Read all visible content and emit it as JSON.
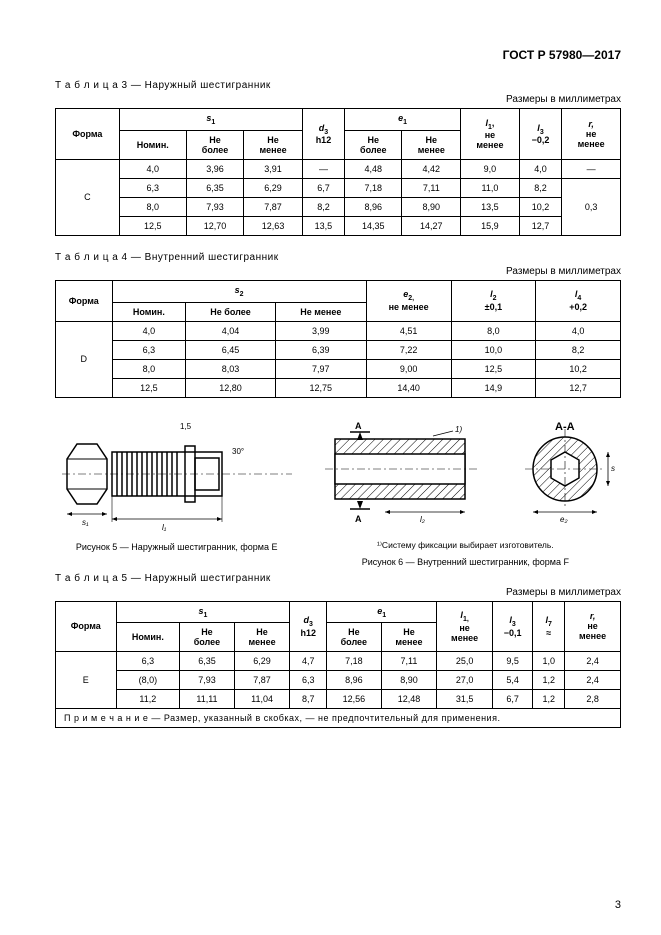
{
  "doc_number": "ГОСТ Р 57980—2017",
  "table3": {
    "title": "Т а б л и ц а  3 — Наружный шестигранник",
    "units": "Размеры в миллиметрах",
    "headers": {
      "form": "Форма",
      "s1": "s",
      "s1_sub": "1",
      "nom": "Номин.",
      "nobolee": "Не\nболее",
      "nomenee": "Не\nменее",
      "d3": "d",
      "d3_sub": "3",
      "d3_tol": "h12",
      "e1": "e",
      "e1_sub": "1",
      "l1": "l",
      "l1_sub": "1",
      "l1_tol": "не\nменее",
      "l3": "l",
      "l3_sub": "3",
      "l3_tol": "−0,2",
      "r": "r,",
      "r_tol": "не\nменее"
    },
    "form_label": "C",
    "rows": [
      [
        "4,0",
        "3,96",
        "3,91",
        "—",
        "4,48",
        "4,42",
        "9,0",
        "4,0",
        "—"
      ],
      [
        "6,3",
        "6,35",
        "6,29",
        "6,7",
        "7,18",
        "7,11",
        "11,0",
        "8,2",
        ""
      ],
      [
        "8,0",
        "7,93",
        "7,87",
        "8,2",
        "8,96",
        "8,90",
        "13,5",
        "10,2",
        "0,3"
      ],
      [
        "12,5",
        "12,70",
        "12,63",
        "13,5",
        "14,35",
        "14,27",
        "15,9",
        "12,7",
        ""
      ]
    ]
  },
  "table4": {
    "title": "Т а б л и ц а  4 — Внутренний шестигранник",
    "units": "Размеры в миллиметрах",
    "headers": {
      "form": "Форма",
      "s2": "s",
      "s2_sub": "2",
      "nom": "Номин.",
      "nobolee": "Не более",
      "nomenee": "Не менее",
      "e2": "e",
      "e2_sub": "2,",
      "e2_tol": "не менее",
      "l2": "l",
      "l2_sub": "2",
      "l2_tol": "±0,1",
      "l4": "l",
      "l4_sub": "4",
      "l4_tol": "+0,2"
    },
    "form_label": "D",
    "rows": [
      [
        "4,0",
        "4,04",
        "3,99",
        "4,51",
        "8,0",
        "4,0"
      ],
      [
        "6,3",
        "6,45",
        "6,39",
        "7,22",
        "10,0",
        "8,2"
      ],
      [
        "8,0",
        "8,03",
        "7,97",
        "9,00",
        "12,5",
        "10,2"
      ],
      [
        "12,5",
        "12,80",
        "12,75",
        "14,40",
        "14,9",
        "12,7"
      ]
    ]
  },
  "fig5_caption": "Рисунок 5 — Наружный шестигранник, форма E",
  "fig6_caption": "Рисунок 6 — Внутренний шестигранник, форма F",
  "fig_footnote": "¹⁾Систему фиксации выбирает изготовитель.",
  "fig_ann": {
    "a_a": "A-A",
    "ref_1": "1)",
    "dim_1_5": "1,5",
    "thirty_deg": "30°",
    "A": "A"
  },
  "table5": {
    "title": "Т а б л и ц а  5 — Наружный шестигранник",
    "units": "Размеры в миллиметрах",
    "headers": {
      "form": "Форма",
      "s1": "s",
      "s1_sub": "1",
      "nom": "Номин.",
      "nobolee": "Не\nболее",
      "nomenee": "Не\nменее",
      "d3": "d",
      "d3_sub": "3",
      "d3_tol": "h12",
      "e1": "e",
      "e1_sub": "1",
      "l1": "l",
      "l1_sub": "1,",
      "l1_tol": "не\nменее",
      "l3": "l",
      "l3_sub": "3",
      "l3_tol": "−0,1",
      "l7": "l",
      "l7_sub": "7",
      "l7_tol": "≈",
      "r": "r,",
      "r_tol": "не\nменее"
    },
    "form_label": "E",
    "rows": [
      [
        "6,3",
        "6,35",
        "6,29",
        "4,7",
        "7,18",
        "7,11",
        "25,0",
        "9,5",
        "1,0",
        "2,4"
      ],
      [
        "(8,0)",
        "7,93",
        "7,87",
        "6,3",
        "8,96",
        "8,90",
        "27,0",
        "5,4",
        "1,2",
        "2,4"
      ],
      [
        "11,2",
        "11,11",
        "11,04",
        "8,7",
        "12,56",
        "12,48",
        "31,5",
        "6,7",
        "1,2",
        "2,8"
      ]
    ],
    "note": "П р и м е ч а н и е — Размер, указанный в скобках, — не предпочтительный для применения."
  },
  "page_number": "3"
}
